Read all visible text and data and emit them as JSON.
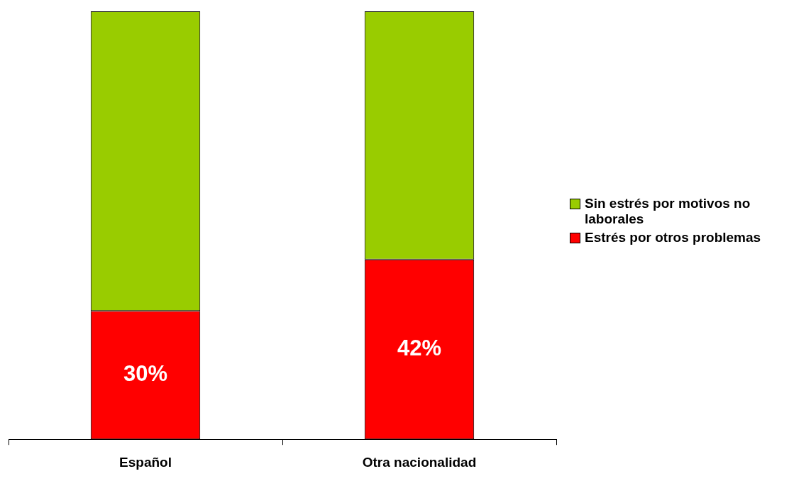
{
  "chart_data": {
    "type": "bar",
    "stacked": true,
    "categories": [
      "Español",
      "Otra nacionalidad"
    ],
    "series": [
      {
        "name": "Estrés por otros problemas",
        "color": "#ff0000",
        "values": [
          30,
          42
        ],
        "value_labels": [
          "30%",
          "42%"
        ]
      },
      {
        "name": "Sin estrés por motivos no laborales",
        "color": "#99cc00",
        "values": [
          70,
          58
        ]
      }
    ],
    "ylim": [
      0,
      100
    ],
    "legend": "right"
  }
}
